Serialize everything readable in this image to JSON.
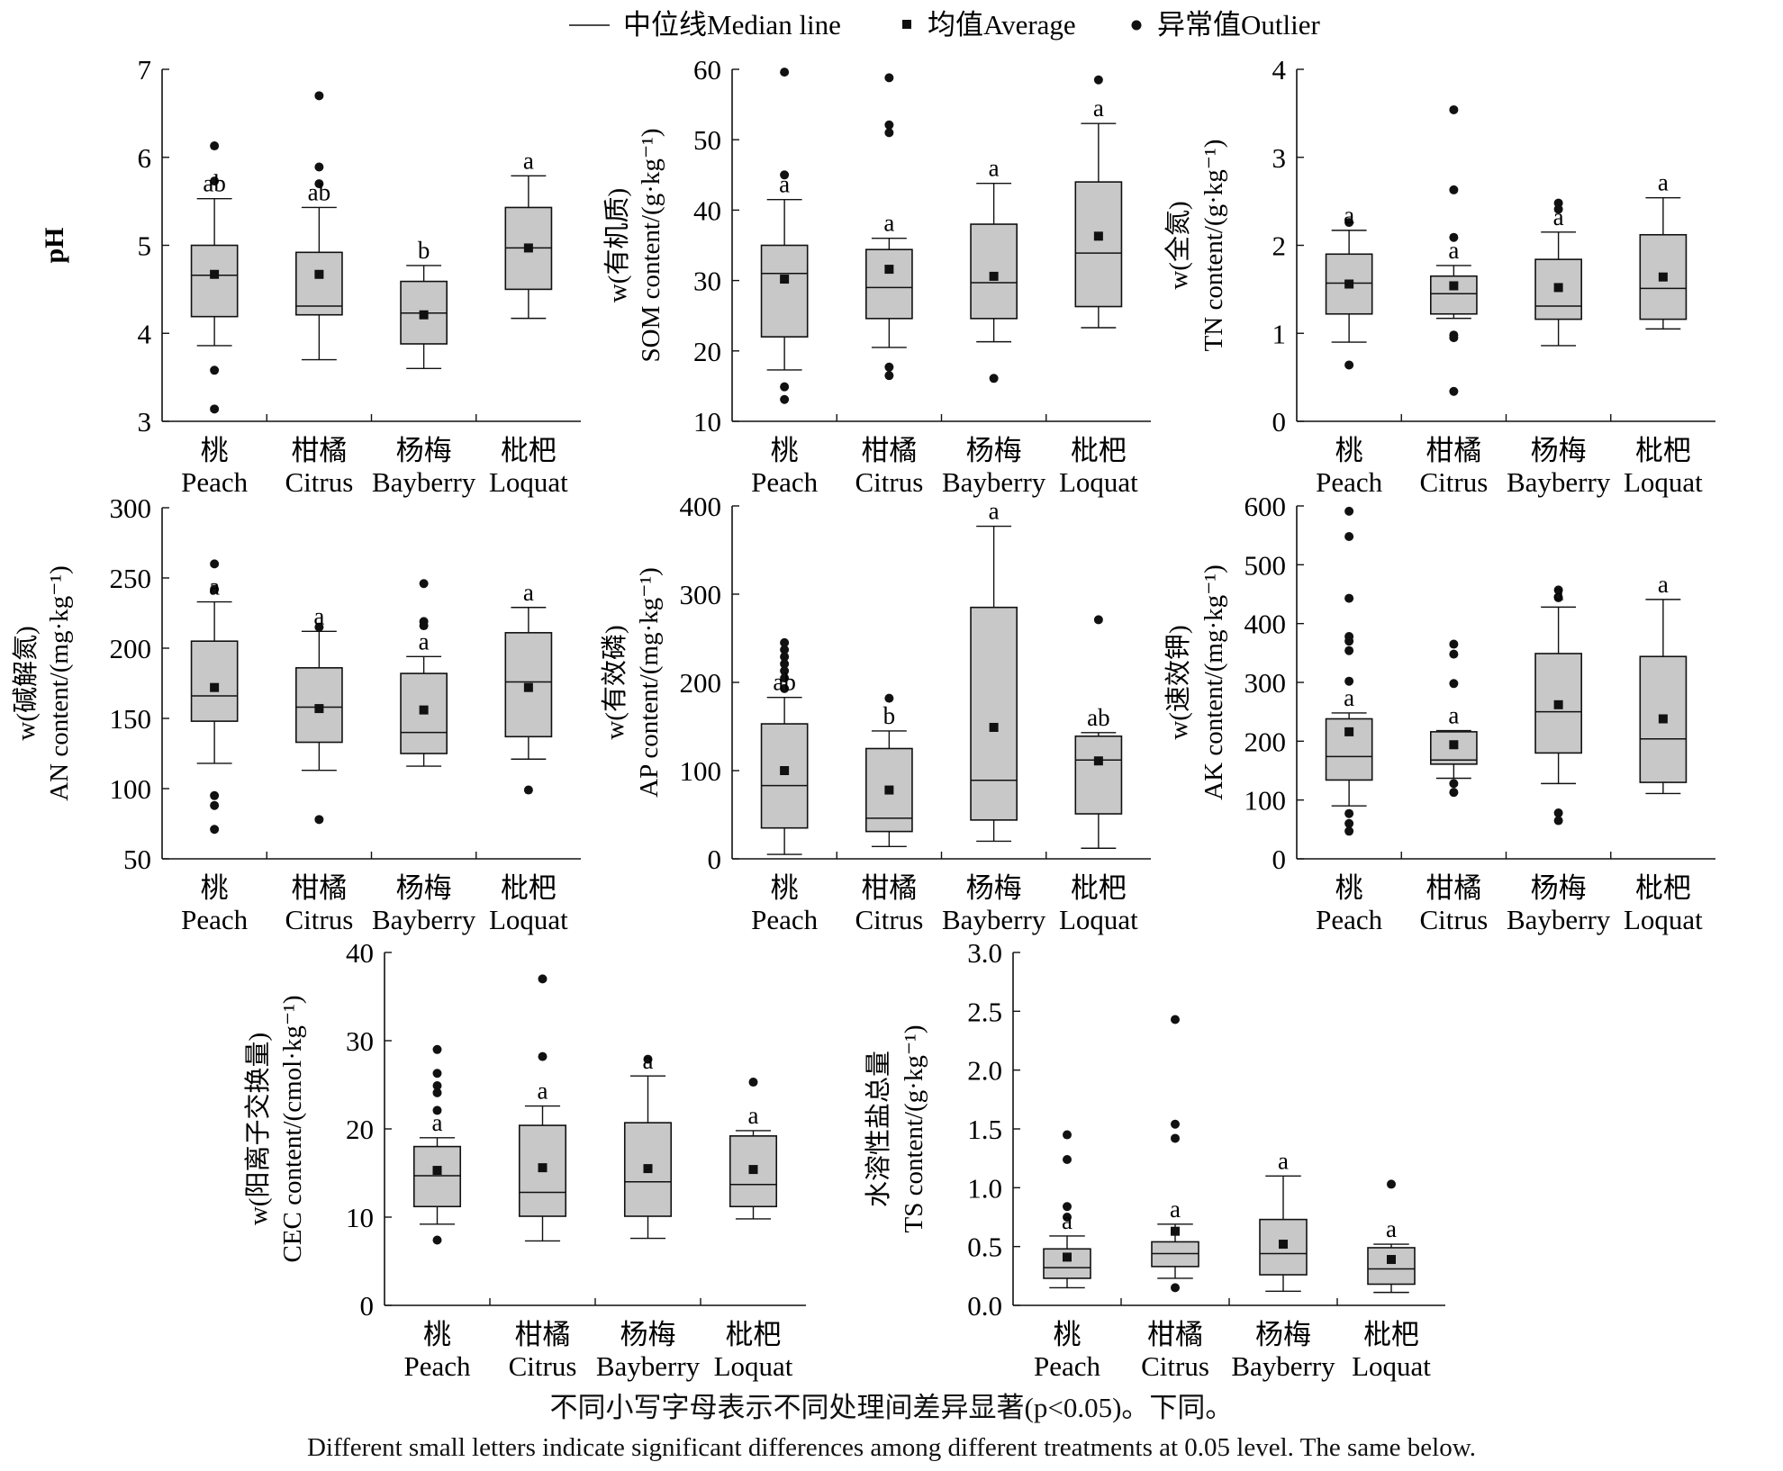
{
  "legend": {
    "median": "中位线Median line",
    "average": "均值Average",
    "outlier": "异常值Outlier"
  },
  "caption": {
    "cn": "不同小写字母表示不同处理间差异显著(p<0.05)。下同。",
    "en": "Different small letters indicate significant differences among different treatments at 0.05 level. The same below."
  },
  "categories": [
    {
      "cn": "桃",
      "en": "Peach"
    },
    {
      "cn": "柑橘",
      "en": "Citrus"
    },
    {
      "cn": "杨梅",
      "en": "Bayberry"
    },
    {
      "cn": "枇杷",
      "en": "Loquat"
    }
  ],
  "colors": {
    "box_fill": "#c8c8c8",
    "stroke": "#111111",
    "background": "#ffffff"
  },
  "chart_data": [
    {
      "type": "box",
      "ylabel": [
        "pH"
      ],
      "ylim": [
        3,
        7
      ],
      "yticks": [
        3,
        4,
        5,
        6,
        7
      ],
      "boxes": [
        {
          "q1": 4.19,
          "median": 4.66,
          "q3": 5.0,
          "whisker_low": 3.86,
          "whisker_high": 5.53,
          "mean": 4.67,
          "outliers": [
            6.13,
            5.73,
            3.58,
            3.14
          ],
          "letter": "ab"
        },
        {
          "q1": 4.21,
          "median": 4.31,
          "q3": 4.92,
          "whisker_low": 3.7,
          "whisker_high": 5.43,
          "mean": 4.67,
          "outliers": [
            6.7,
            5.89,
            5.7
          ],
          "letter": "ab"
        },
        {
          "q1": 3.88,
          "median": 4.23,
          "q3": 4.59,
          "whisker_low": 3.6,
          "whisker_high": 4.77,
          "mean": 4.21,
          "outliers": [],
          "letter": "b"
        },
        {
          "q1": 4.5,
          "median": 4.97,
          "q3": 5.43,
          "whisker_low": 4.17,
          "whisker_high": 5.79,
          "mean": 4.97,
          "outliers": [],
          "letter": "a"
        }
      ]
    },
    {
      "type": "box",
      "ylabel": [
        "w(有机质)",
        "SOM content/(g·kg⁻¹)"
      ],
      "ylim": [
        10,
        60
      ],
      "yticks": [
        10,
        20,
        30,
        40,
        50,
        60
      ],
      "boxes": [
        {
          "q1": 22,
          "median": 31,
          "q3": 35,
          "whisker_low": 17.3,
          "whisker_high": 41.5,
          "mean": 30.2,
          "outliers": [
            59.6,
            45,
            14.9,
            13.1
          ],
          "letter": "a"
        },
        {
          "q1": 24.6,
          "median": 29,
          "q3": 34.4,
          "whisker_low": 20.5,
          "whisker_high": 36,
          "mean": 31.6,
          "outliers": [
            58.8,
            52.1,
            51,
            17.7,
            16.5
          ],
          "letter": "a"
        },
        {
          "q1": 24.6,
          "median": 29.7,
          "q3": 38,
          "whisker_low": 21.3,
          "whisker_high": 43.8,
          "mean": 30.6,
          "outliers": [
            16.1
          ],
          "letter": "a"
        },
        {
          "q1": 26.3,
          "median": 33.9,
          "q3": 44,
          "whisker_low": 23.3,
          "whisker_high": 52.3,
          "mean": 36.3,
          "outliers": [
            58.5
          ],
          "letter": "a"
        }
      ]
    },
    {
      "type": "box",
      "ylabel": [
        "w(全氮)",
        "TN content/(g·kg⁻¹)"
      ],
      "ylim": [
        0,
        4
      ],
      "yticks": [
        0,
        1,
        2,
        3,
        4
      ],
      "boxes": [
        {
          "q1": 1.22,
          "median": 1.57,
          "q3": 1.9,
          "whisker_low": 0.9,
          "whisker_high": 2.17,
          "mean": 1.56,
          "outliers": [
            2.26,
            0.64
          ],
          "letter": "a"
        },
        {
          "q1": 1.22,
          "median": 1.45,
          "q3": 1.65,
          "whisker_low": 1.17,
          "whisker_high": 1.77,
          "mean": 1.54,
          "outliers": [
            3.54,
            2.63,
            2.09,
            0.98,
            0.95,
            0.34
          ],
          "letter": "a"
        },
        {
          "q1": 1.16,
          "median": 1.31,
          "q3": 1.84,
          "whisker_low": 0.86,
          "whisker_high": 2.15,
          "mean": 1.52,
          "outliers": [
            2.48,
            2.41
          ],
          "letter": "a"
        },
        {
          "q1": 1.16,
          "median": 1.51,
          "q3": 2.12,
          "whisker_low": 1.05,
          "whisker_high": 2.54,
          "mean": 1.64,
          "outliers": [],
          "letter": "a"
        }
      ]
    },
    {
      "type": "box",
      "ylabel": [
        "w(碱解氮)",
        "AN content/(mg·kg⁻¹)"
      ],
      "ylim": [
        50,
        300
      ],
      "yticks": [
        50,
        100,
        150,
        200,
        250,
        300
      ],
      "boxes": [
        {
          "q1": 148,
          "median": 166,
          "q3": 205,
          "whisker_low": 118,
          "whisker_high": 233,
          "mean": 172,
          "outliers": [
            260,
            242,
            95,
            88,
            71
          ],
          "letter": "a"
        },
        {
          "q1": 133,
          "median": 158,
          "q3": 186,
          "whisker_low": 113,
          "whisker_high": 212,
          "mean": 157,
          "outliers": [
            215,
            78
          ],
          "letter": "a"
        },
        {
          "q1": 125,
          "median": 140,
          "q3": 182,
          "whisker_low": 116,
          "whisker_high": 194,
          "mean": 156,
          "outliers": [
            246,
            219,
            216
          ],
          "letter": "a"
        },
        {
          "q1": 137,
          "median": 176,
          "q3": 211,
          "whisker_low": 121,
          "whisker_high": 229,
          "mean": 172,
          "outliers": [
            99
          ],
          "letter": "a"
        }
      ]
    },
    {
      "type": "box",
      "ylabel": [
        "w(有效磷)",
        "AP content/(mg·kg⁻¹)"
      ],
      "ylim": [
        0,
        400
      ],
      "yticks": [
        0,
        100,
        200,
        300,
        400
      ],
      "boxes": [
        {
          "q1": 35,
          "median": 83,
          "q3": 153,
          "whisker_low": 5,
          "whisker_high": 183,
          "mean": 100,
          "outliers": [
            245,
            237,
            229,
            221,
            213,
            205,
            193
          ],
          "letter": "ab"
        },
        {
          "q1": 31,
          "median": 46,
          "q3": 125,
          "whisker_low": 14,
          "whisker_high": 145,
          "mean": 78,
          "outliers": [
            182
          ],
          "letter": "b"
        },
        {
          "q1": 44,
          "median": 89,
          "q3": 285,
          "whisker_low": 20,
          "whisker_high": 377,
          "mean": 149,
          "outliers": [],
          "letter": "a"
        },
        {
          "q1": 51,
          "median": 112,
          "q3": 139,
          "whisker_low": 12,
          "whisker_high": 143,
          "mean": 111,
          "outliers": [
            271
          ],
          "letter": "ab"
        }
      ]
    },
    {
      "type": "box",
      "ylabel": [
        "w(速效钾)",
        "AK content/(mg·kg⁻¹)"
      ],
      "ylim": [
        0,
        600
      ],
      "yticks": [
        0,
        100,
        200,
        300,
        400,
        500,
        600
      ],
      "boxes": [
        {
          "q1": 134,
          "median": 174,
          "q3": 238,
          "whisker_low": 90,
          "whisker_high": 248,
          "mean": 216,
          "outliers": [
            591,
            548,
            443,
            378,
            370,
            354,
            302,
            77,
            60,
            47
          ],
          "letter": "a"
        },
        {
          "q1": 161,
          "median": 168,
          "q3": 216,
          "whisker_low": 137,
          "whisker_high": 218,
          "mean": 194,
          "outliers": [
            365,
            348,
            298,
            128,
            113
          ],
          "letter": "a"
        },
        {
          "q1": 180,
          "median": 250,
          "q3": 349,
          "whisker_low": 128,
          "whisker_high": 428,
          "mean": 262,
          "outliers": [
            457,
            444,
            78,
            65
          ],
          "letter": "a"
        },
        {
          "q1": 130,
          "median": 204,
          "q3": 344,
          "whisker_low": 111,
          "whisker_high": 441,
          "mean": 238,
          "outliers": [],
          "letter": "a"
        }
      ]
    },
    {
      "type": "box",
      "ylabel": [
        "w(阳离子交换量)",
        "CEC content/(cmol·kg⁻¹)"
      ],
      "ylim": [
        0,
        40
      ],
      "yticks": [
        0,
        10,
        20,
        30,
        40
      ],
      "boxes": [
        {
          "q1": 11.2,
          "median": 14.7,
          "q3": 18,
          "whisker_low": 9.2,
          "whisker_high": 19,
          "mean": 15.3,
          "outliers": [
            29,
            26.3,
            24.9,
            24.1,
            22.1,
            7.4
          ],
          "letter": "a"
        },
        {
          "q1": 10.1,
          "median": 12.8,
          "q3": 20.4,
          "whisker_low": 7.3,
          "whisker_high": 22.6,
          "mean": 15.6,
          "outliers": [
            37,
            28.2
          ],
          "letter": "a"
        },
        {
          "q1": 10.1,
          "median": 14,
          "q3": 20.7,
          "whisker_low": 7.6,
          "whisker_high": 26,
          "mean": 15.5,
          "outliers": [
            27.9
          ],
          "letter": "a"
        },
        {
          "q1": 11.2,
          "median": 13.7,
          "q3": 19.2,
          "whisker_low": 9.8,
          "whisker_high": 19.8,
          "mean": 15.4,
          "outliers": [
            25.3
          ],
          "letter": "a"
        }
      ]
    },
    {
      "type": "box",
      "ylabel": [
        "水溶性盐总量",
        "TS content/(g·kg⁻¹)"
      ],
      "ylim": [
        0,
        3.0
      ],
      "yticks": [
        0,
        0.5,
        1.0,
        1.5,
        2.0,
        2.5,
        3.0
      ],
      "tick_decimals": 1,
      "boxes": [
        {
          "q1": 0.23,
          "median": 0.32,
          "q3": 0.48,
          "whisker_low": 0.15,
          "whisker_high": 0.59,
          "mean": 0.41,
          "outliers": [
            1.45,
            1.24,
            0.84,
            0.75
          ],
          "letter": "a"
        },
        {
          "q1": 0.33,
          "median": 0.44,
          "q3": 0.54,
          "whisker_low": 0.23,
          "whisker_high": 0.69,
          "mean": 0.63,
          "outliers": [
            2.43,
            1.54,
            1.42,
            0.15
          ],
          "letter": "a"
        },
        {
          "q1": 0.26,
          "median": 0.44,
          "q3": 0.73,
          "whisker_low": 0.12,
          "whisker_high": 1.1,
          "mean": 0.52,
          "outliers": [],
          "letter": "a"
        },
        {
          "q1": 0.18,
          "median": 0.31,
          "q3": 0.49,
          "whisker_low": 0.11,
          "whisker_high": 0.52,
          "mean": 0.39,
          "outliers": [
            1.03
          ],
          "letter": "a"
        }
      ]
    }
  ]
}
